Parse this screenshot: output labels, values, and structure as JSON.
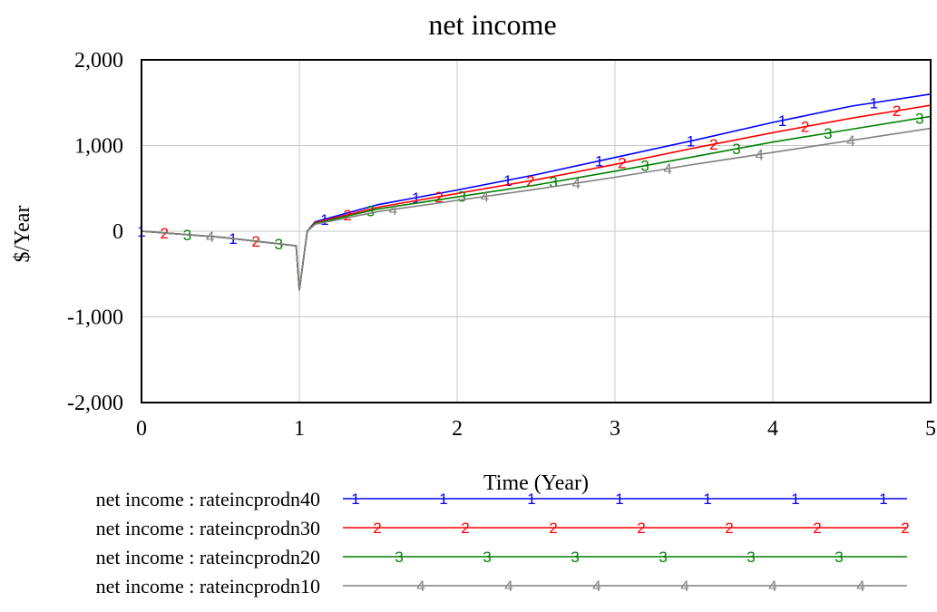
{
  "chart_data": {
    "type": "line",
    "title": "net income",
    "xlabel": "Time (Year)",
    "ylabel": "$/Year",
    "xlim": [
      0,
      5
    ],
    "ylim": [
      -2000,
      2000
    ],
    "x_ticks": [
      "0",
      "1",
      "2",
      "3",
      "4",
      "5"
    ],
    "y_ticks": [
      "-2,000",
      "-1,000",
      "0",
      "1,000",
      "2,000"
    ],
    "grid": true,
    "legend_position": "bottom",
    "series": [
      {
        "name": "net income : rateincprodn40",
        "marker": "1",
        "color": "#0000ff",
        "points": [
          [
            0,
            0
          ],
          [
            0.5,
            -70
          ],
          [
            0.98,
            -170
          ],
          [
            1.0,
            -690
          ],
          [
            1.05,
            0
          ],
          [
            1.1,
            110
          ],
          [
            1.5,
            310
          ],
          [
            2,
            480
          ],
          [
            2.5,
            660
          ],
          [
            3,
            860
          ],
          [
            3.5,
            1060
          ],
          [
            4,
            1270
          ],
          [
            4.5,
            1460
          ],
          [
            5,
            1600
          ]
        ]
      },
      {
        "name": "net income : rateincprodn30",
        "marker": "2",
        "color": "#ff0000",
        "points": [
          [
            0,
            0
          ],
          [
            0.5,
            -70
          ],
          [
            0.98,
            -170
          ],
          [
            1.0,
            -690
          ],
          [
            1.05,
            0
          ],
          [
            1.1,
            100
          ],
          [
            1.5,
            280
          ],
          [
            2,
            440
          ],
          [
            2.5,
            600
          ],
          [
            3,
            780
          ],
          [
            3.5,
            970
          ],
          [
            4,
            1150
          ],
          [
            4.5,
            1320
          ],
          [
            5,
            1470
          ]
        ]
      },
      {
        "name": "net income : rateincprodn20",
        "marker": "3",
        "color": "#008000",
        "points": [
          [
            0,
            0
          ],
          [
            0.5,
            -70
          ],
          [
            0.98,
            -170
          ],
          [
            1.0,
            -690
          ],
          [
            1.05,
            0
          ],
          [
            1.1,
            90
          ],
          [
            1.5,
            260
          ],
          [
            2,
            400
          ],
          [
            2.5,
            540
          ],
          [
            3,
            700
          ],
          [
            3.5,
            870
          ],
          [
            4,
            1040
          ],
          [
            4.5,
            1190
          ],
          [
            5,
            1340
          ]
        ]
      },
      {
        "name": "net income : rateincprodn10",
        "marker": "4",
        "color": "#808080",
        "points": [
          [
            0,
            0
          ],
          [
            0.5,
            -70
          ],
          [
            0.98,
            -170
          ],
          [
            1.0,
            -690
          ],
          [
            1.05,
            0
          ],
          [
            1.1,
            80
          ],
          [
            1.5,
            230
          ],
          [
            2,
            360
          ],
          [
            2.5,
            490
          ],
          [
            3,
            630
          ],
          [
            3.5,
            780
          ],
          [
            4,
            920
          ],
          [
            4.5,
            1060
          ],
          [
            5,
            1200
          ]
        ]
      }
    ]
  }
}
